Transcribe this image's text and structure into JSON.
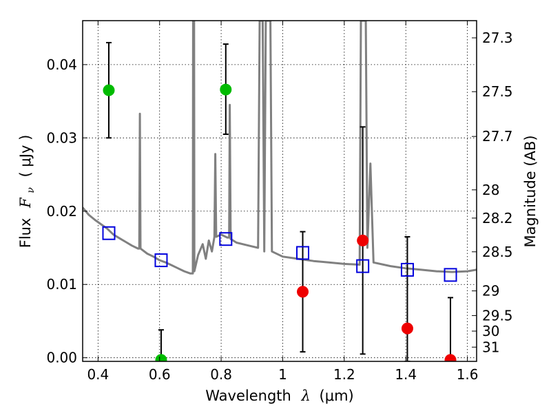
{
  "chart_data": {
    "type": "scatter",
    "xlabel_text": "Wavelength",
    "xlabel_symbol": "λ",
    "xlabel_unit": "(μm)",
    "ylabel_text": "Flux",
    "ylabel_symbol": "F",
    "ylabel_subscript": "ν",
    "ylabel_unit": "( μJy )",
    "y2label": "Magnitude (AB)",
    "xlim": [
      0.35,
      1.63
    ],
    "ylim": [
      -0.0005,
      0.046
    ],
    "x_ticks": [
      0.4,
      0.6,
      0.8,
      1.0,
      1.2,
      1.4,
      1.6
    ],
    "x_tick_labels": [
      "0.4",
      "0.6",
      "0.8",
      "1",
      "1.2",
      "1.4",
      "1.6"
    ],
    "y_ticks": [
      0.0,
      0.01,
      0.02,
      0.03,
      0.04
    ],
    "y_tick_labels": [
      "0.00",
      "0.01",
      "0.02",
      "0.03",
      "0.04"
    ],
    "mag_ticks": [
      27.3,
      27.5,
      27.7,
      28,
      28.2,
      28.5,
      29,
      29.5,
      30,
      31
    ],
    "mag_tick_labels": [
      "27.3",
      "27.5",
      "27.7",
      "28",
      "28.2",
      "28.5",
      "29",
      "29.5",
      "30",
      "31"
    ],
    "grid": true,
    "colors": {
      "model": "#808080",
      "green": "#00bb00",
      "red": "#ee0000",
      "blue": "#0000dd",
      "errorbar": "#000000"
    },
    "series": [
      {
        "name": "model spectrum",
        "kind": "line",
        "points": [
          [
            0.35,
            0.0205
          ],
          [
            0.37,
            0.0195
          ],
          [
            0.39,
            0.0188
          ],
          [
            0.41,
            0.0182
          ],
          [
            0.43,
            0.0176
          ],
          [
            0.45,
            0.0168
          ],
          [
            0.47,
            0.0163
          ],
          [
            0.49,
            0.0158
          ],
          [
            0.51,
            0.0153
          ],
          [
            0.53,
            0.0149
          ],
          [
            0.534,
            0.0149
          ],
          [
            0.536,
            0.0333
          ],
          [
            0.538,
            0.0149
          ],
          [
            0.56,
            0.0142
          ],
          [
            0.58,
            0.0138
          ],
          [
            0.6,
            0.0133
          ],
          [
            0.62,
            0.013
          ],
          [
            0.64,
            0.0126
          ],
          [
            0.66,
            0.0122
          ],
          [
            0.68,
            0.0118
          ],
          [
            0.7,
            0.0115
          ],
          [
            0.708,
            0.0115
          ],
          [
            0.709,
            0.046
          ],
          [
            0.712,
            0.046
          ],
          [
            0.713,
            0.0118
          ],
          [
            0.725,
            0.014
          ],
          [
            0.74,
            0.0155
          ],
          [
            0.75,
            0.0135
          ],
          [
            0.76,
            0.016
          ],
          [
            0.77,
            0.0145
          ],
          [
            0.778,
            0.0165
          ],
          [
            0.781,
            0.0278
          ],
          [
            0.784,
            0.0165
          ],
          [
            0.8,
            0.0168
          ],
          [
            0.82,
            0.0164
          ],
          [
            0.826,
            0.0164
          ],
          [
            0.828,
            0.0345
          ],
          [
            0.831,
            0.0162
          ],
          [
            0.85,
            0.0157
          ],
          [
            0.87,
            0.0155
          ],
          [
            0.9,
            0.0152
          ],
          [
            0.92,
            0.015
          ],
          [
            0.925,
            0.046
          ],
          [
            0.935,
            0.046
          ],
          [
            0.94,
            0.0145
          ],
          [
            0.945,
            0.046
          ],
          [
            0.96,
            0.046
          ],
          [
            0.965,
            0.0145
          ],
          [
            1.0,
            0.0138
          ],
          [
            1.05,
            0.0135
          ],
          [
            1.1,
            0.0132
          ],
          [
            1.15,
            0.013
          ],
          [
            1.2,
            0.0128
          ],
          [
            1.25,
            0.0127
          ],
          [
            1.254,
            0.046
          ],
          [
            1.27,
            0.046
          ],
          [
            1.275,
            0.015
          ],
          [
            1.285,
            0.0265
          ],
          [
            1.295,
            0.013
          ],
          [
            1.35,
            0.0125
          ],
          [
            1.4,
            0.0122
          ],
          [
            1.45,
            0.012
          ],
          [
            1.5,
            0.0118
          ],
          [
            1.55,
            0.0117
          ],
          [
            1.6,
            0.0118
          ],
          [
            1.63,
            0.012
          ]
        ]
      },
      {
        "name": "green detections",
        "kind": "points",
        "marker": "circle",
        "color": "green",
        "points": [
          {
            "x": 0.435,
            "y": 0.0365,
            "ylo": 0.03,
            "yhi": 0.043
          },
          {
            "x": 0.605,
            "y": -0.0003,
            "ylo": -0.0005,
            "yhi": 0.0038
          },
          {
            "x": 0.815,
            "y": 0.0366,
            "ylo": 0.0305,
            "yhi": 0.0428
          }
        ]
      },
      {
        "name": "red detections",
        "kind": "points",
        "marker": "circle",
        "color": "red",
        "points": [
          {
            "x": 1.065,
            "y": 0.009,
            "ylo": 0.0008,
            "yhi": 0.0172
          },
          {
            "x": 1.26,
            "y": 0.016,
            "ylo": 0.0005,
            "yhi": 0.0315
          },
          {
            "x": 1.405,
            "y": 0.004,
            "ylo": -0.0005,
            "yhi": 0.0165
          },
          {
            "x": 1.545,
            "y": -0.0003,
            "ylo": -0.0005,
            "yhi": 0.0082
          }
        ]
      },
      {
        "name": "model photometry",
        "kind": "points",
        "marker": "square",
        "color": "blue",
        "points": [
          {
            "x": 0.435,
            "y": 0.017
          },
          {
            "x": 0.605,
            "y": 0.0133
          },
          {
            "x": 0.815,
            "y": 0.0162
          },
          {
            "x": 1.065,
            "y": 0.0143
          },
          {
            "x": 1.26,
            "y": 0.0125
          },
          {
            "x": 1.405,
            "y": 0.012
          },
          {
            "x": 1.545,
            "y": 0.0113
          }
        ]
      }
    ]
  }
}
